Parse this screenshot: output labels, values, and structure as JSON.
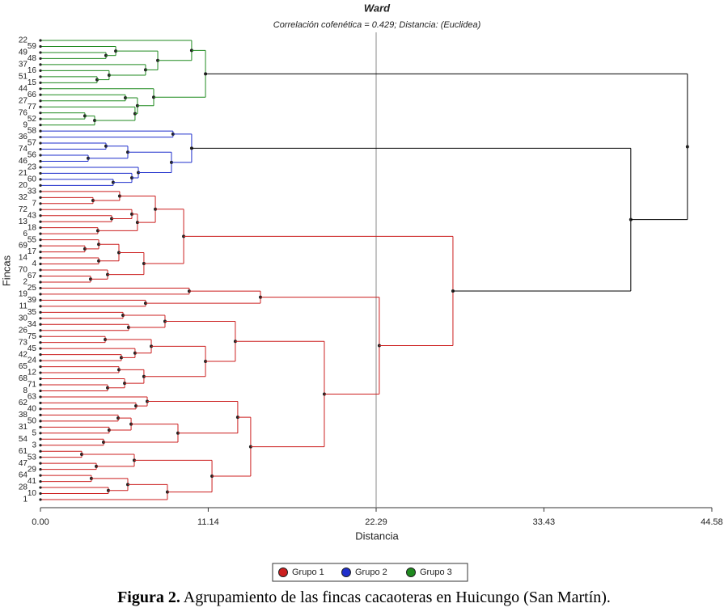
{
  "chart_data": {
    "type": "dendrogram",
    "title": "Ward",
    "subtitle": "Correlación cofenética = 0.429; Distancia: (Euclidea)",
    "x_label": "Distancia",
    "y_label": "Fincas",
    "xlim": [
      0,
      44.58
    ],
    "xticks": [
      {
        "value": 0,
        "label": "0.00"
      },
      {
        "value": 11.14,
        "label": "11.14"
      },
      {
        "value": 22.29,
        "label": "22.29"
      },
      {
        "value": 33.43,
        "label": "33.43"
      },
      {
        "value": 44.58,
        "label": "44.58"
      }
    ],
    "cut": 22.29,
    "groups": [
      {
        "name": "Grupo 1",
        "color": "#cc1f1f"
      },
      {
        "name": "Grupo 2",
        "color": "#1f2fcc"
      },
      {
        "name": "Grupo 3",
        "color": "#1f8a1f"
      }
    ],
    "leaves": [
      "22",
      "59",
      "49",
      "48",
      "37",
      "16",
      "51",
      "15",
      "44",
      "66",
      "27",
      "77",
      "76",
      "52",
      "9",
      "58",
      "36",
      "57",
      "74",
      "56",
      "46",
      "23",
      "21",
      "60",
      "20",
      "33",
      "32",
      "7",
      "72",
      "43",
      "13",
      "18",
      "6",
      "55",
      "69",
      "17",
      "14",
      "4",
      "70",
      "67",
      "2",
      "25",
      "19",
      "39",
      "11",
      "35",
      "30",
      "34",
      "26",
      "75",
      "73",
      "45",
      "42",
      "24",
      "65",
      "12",
      "68",
      "71",
      "8",
      "63",
      "62",
      "40",
      "38",
      "50",
      "31",
      "5",
      "54",
      "3",
      "61",
      "53",
      "47",
      "29",
      "64",
      "41",
      "28",
      "10",
      "1"
    ],
    "tree": {
      "height": 42.96,
      "children": [
        {
          "height": 10.96,
          "group": 2,
          "children": [
            {
              "height": 10.04,
              "children": [
                0,
                {
                  "height": 7.79,
                  "children": [
                    {
                      "height": 5.0,
                      "children": [
                        1,
                        {
                          "height": 4.35,
                          "children": [
                            2,
                            3
                          ]
                        }
                      ]
                    },
                    {
                      "height": 6.98,
                      "children": [
                        4,
                        {
                          "height": 4.56,
                          "children": [
                            5,
                            {
                              "height": 3.76,
                              "children": [
                                6,
                                7
                              ]
                            }
                          ]
                        }
                      ]
                    }
                  ]
                }
              ]
            },
            {
              "height": 7.52,
              "children": [
                8,
                {
                  "height": 6.44,
                  "children": [
                    {
                      "height": 5.64,
                      "children": [
                        9,
                        10
                      ]
                    },
                    {
                      "height": 6.28,
                      "children": [
                        11,
                        {
                          "height": 3.6,
                          "children": [
                            {
                              "height": 2.95,
                              "children": [
                                12,
                                13
                              ]
                            },
                            14
                          ]
                        }
                      ]
                    }
                  ]
                }
              ]
            }
          ]
        },
        {
          "height": 39.2,
          "children": [
            {
              "height": 10.04,
              "group": 1,
              "children": [
                {
                  "height": 8.8,
                  "children": [
                    15,
                    16
                  ]
                },
                {
                  "height": 8.7,
                  "children": [
                    {
                      "height": 5.8,
                      "children": [
                        {
                          "height": 4.35,
                          "children": [
                            17,
                            18
                          ]
                        },
                        {
                          "height": 3.17,
                          "children": [
                            19,
                            20
                          ]
                        }
                      ]
                    },
                    {
                      "height": 6.5,
                      "children": [
                        21,
                        {
                          "height": 6.07,
                          "children": [
                            22,
                            {
                              "height": 4.83,
                              "children": [
                                23,
                                24
                              ]
                            }
                          ]
                        }
                      ]
                    }
                  ]
                }
              ]
            },
            {
              "height": 27.39,
              "group": 0,
              "children": [
                {
                  "height": 9.51,
                  "children": [
                    {
                      "height": 7.63,
                      "children": [
                        {
                          "height": 5.26,
                          "children": [
                            25,
                            {
                              "height": 3.49,
                              "children": [
                                26,
                                27
                              ]
                            }
                          ]
                        },
                        {
                          "height": 6.44,
                          "children": [
                            {
                              "height": 6.07,
                              "children": [
                                28,
                                {
                                  "height": 4.73,
                                  "children": [
                                    29,
                                    30
                                  ]
                                }
                              ]
                            },
                            {
                              "height": 3.81,
                              "children": [
                                31,
                                32
                              ]
                            }
                          ]
                        }
                      ]
                    },
                    {
                      "height": 6.87,
                      "children": [
                        {
                          "height": 5.21,
                          "children": [
                            {
                              "height": 3.87,
                              "children": [
                                33,
                                {
                                  "height": 2.95,
                                  "children": [
                                    34,
                                    35
                                  ]
                                }
                              ]
                            },
                            {
                              "height": 3.87,
                              "children": [
                                36,
                                37
                              ]
                            }
                          ]
                        },
                        {
                          "height": 4.46,
                          "children": [
                            38,
                            {
                              "height": 3.33,
                              "children": [
                                39,
                                40
                              ]
                            }
                          ]
                        }
                      ]
                    }
                  ]
                },
                {
                  "height": 22.5,
                  "children": [
                    {
                      "height": 14.61,
                      "children": [
                        {
                          "height": 9.88,
                          "children": [
                            41,
                            42
                          ]
                        },
                        {
                          "height": 6.98,
                          "children": [
                            43,
                            44
                          ]
                        }
                      ]
                    },
                    {
                      "height": 18.85,
                      "children": [
                        {
                          "height": 12.94,
                          "children": [
                            {
                              "height": 8.27,
                              "children": [
                                {
                                  "height": 5.48,
                                  "children": [
                                    45,
                                    46
                                  ]
                                },
                                {
                                  "height": 5.85,
                                  "children": [
                                    47,
                                    48
                                  ]
                                }
                              ]
                            },
                            {
                              "height": 10.96,
                              "children": [
                                {
                                  "height": 7.36,
                                  "children": [
                                    {
                                      "height": 4.3,
                                      "children": [
                                        49,
                                        50
                                      ]
                                    },
                                    {
                                      "height": 6.28,
                                      "children": [
                                        51,
                                        {
                                          "height": 5.37,
                                          "children": [
                                            52,
                                            53
                                          ]
                                        }
                                      ]
                                    }
                                  ]
                                },
                                {
                                  "height": 6.87,
                                  "children": [
                                    {
                                      "height": 5.21,
                                      "children": [
                                        54,
                                        55
                                      ]
                                    },
                                    {
                                      "height": 5.59,
                                      "children": [
                                        56,
                                        {
                                          "height": 4.46,
                                          "children": [
                                            57,
                                            58
                                          ]
                                        }
                                      ]
                                    }
                                  ]
                                }
                              ]
                            }
                          ]
                        },
                        {
                          "height": 13.96,
                          "children": [
                            {
                              "height": 13.1,
                              "children": [
                                {
                                  "height": 7.09,
                                  "children": [
                                    59,
                                    {
                                      "height": 6.34,
                                      "children": [
                                        60,
                                        61
                                      ]
                                    }
                                  ]
                                },
                                {
                                  "height": 9.13,
                                  "children": [
                                    {
                                      "height": 6.02,
                                      "children": [
                                        {
                                          "height": 5.16,
                                          "children": [
                                            62,
                                            63
                                          ]
                                        },
                                        {
                                          "height": 4.56,
                                          "children": [
                                            64,
                                            65
                                          ]
                                        }
                                      ]
                                    },
                                    {
                                      "height": 4.19,
                                      "children": [
                                        66,
                                        67
                                      ]
                                    }
                                  ]
                                }
                              ]
                            },
                            {
                              "height": 11.39,
                              "children": [
                                {
                                  "height": 6.23,
                                  "children": [
                                    {
                                      "height": 2.74,
                                      "children": [
                                        68,
                                        69
                                      ]
                                    },
                                    {
                                      "height": 3.71,
                                      "children": [
                                        70,
                                        71
                                      ]
                                    }
                                  ]
                                },
                                {
                                  "height": 8.43,
                                  "children": [
                                    {
                                      "height": 5.8,
                                      "children": [
                                        {
                                          "height": 3.38,
                                          "children": [
                                            72,
                                            73
                                          ]
                                        },
                                        {
                                          "height": 4.51,
                                          "children": [
                                            74,
                                            75
                                          ]
                                        }
                                      ]
                                    },
                                    76
                                  ]
                                }
                              ]
                            }
                          ]
                        }
                      ]
                    }
                  ]
                }
              ]
            }
          ]
        }
      ]
    }
  },
  "caption_label": "Figura 2.",
  "caption_text": "Agrupamiento de las fincas cacaoteras en Huicungo (San Martín)."
}
